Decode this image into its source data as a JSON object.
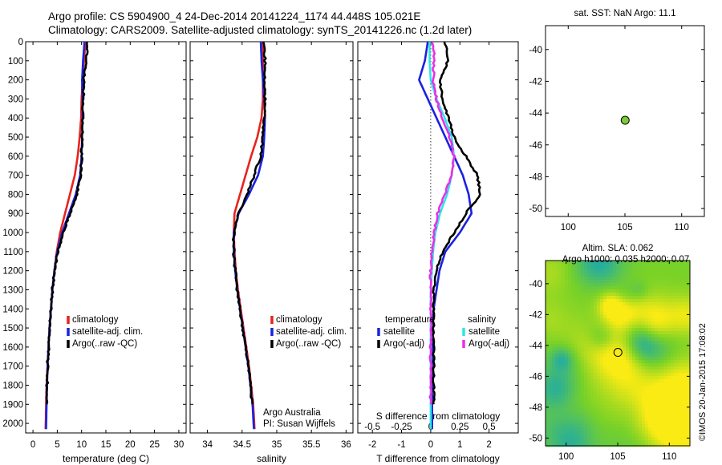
{
  "header": {
    "line1": "Argo profile: CS 5904900_4 24-Dec-2014 20141224_1174 44.448S 105.021E",
    "line2": "Climatology: CARS2009. Satellite-adjusted climatology: synTS_20141226.nc (1.2d later)"
  },
  "copyright": "©IMOS 20-Jan-2015 17:08:02",
  "colors": {
    "climatology": "#e8231c",
    "satellite": "#1a22e0",
    "argo": "#000000",
    "sat_salinity": "#2ee6e6",
    "argo_salinity": "#e830e8",
    "map_marker": "#7cc93a"
  },
  "chart_data": [
    {
      "type": "line",
      "id": "temperature",
      "xlabel": "temperature (deg C)",
      "xticks": [
        0,
        5,
        10,
        15,
        20,
        25,
        30
      ],
      "xlim": [
        -1.5,
        31.5
      ],
      "yticks": [
        0,
        100,
        200,
        300,
        400,
        500,
        600,
        700,
        800,
        900,
        1000,
        1100,
        1200,
        1300,
        1400,
        1500,
        1600,
        1700,
        1800,
        1900,
        2000
      ],
      "ylim": [
        0,
        2050
      ],
      "legend": [
        "climatology",
        "satellite-adj. clim.",
        "Argo(..raw -QC)"
      ],
      "series": [
        {
          "name": "climatology",
          "color": "#e8231c",
          "x": [
            10.8,
            10.5,
            10.2,
            10.0,
            9.9,
            9.6,
            9.2,
            8.6,
            7.6,
            6.6,
            5.6,
            4.9,
            4.4,
            4.0,
            3.7,
            3.4,
            3.2,
            3.0,
            2.8,
            2.7,
            2.6
          ],
          "y": [
            0,
            100,
            200,
            300,
            400,
            500,
            600,
            700,
            800,
            900,
            1000,
            1100,
            1200,
            1300,
            1400,
            1500,
            1600,
            1700,
            1800,
            1900,
            2030
          ]
        },
        {
          "name": "satellite-adj. clim.",
          "color": "#1a22e0",
          "x": [
            10.6,
            10.3,
            10.1,
            10.2,
            10.2,
            10.1,
            10.0,
            9.7,
            8.8,
            7.4,
            6.0,
            5.0,
            4.4,
            4.0,
            3.7,
            3.4,
            3.2,
            3.0,
            2.9,
            2.8,
            2.7
          ],
          "y": [
            0,
            100,
            200,
            300,
            400,
            500,
            600,
            700,
            800,
            900,
            1000,
            1100,
            1200,
            1300,
            1400,
            1500,
            1600,
            1700,
            1800,
            1900,
            2030
          ]
        },
        {
          "name": "Argo(..raw -QC)",
          "color": "#000000",
          "x": [
            11.3,
            11.0,
            10.5,
            10.3,
            10.2,
            10.1,
            10.0,
            9.8,
            9.0,
            7.7,
            6.2,
            5.1,
            4.5,
            4.0,
            3.7,
            3.4,
            3.2,
            3.0,
            2.9,
            2.8
          ],
          "y": [
            0,
            100,
            200,
            300,
            400,
            500,
            600,
            700,
            800,
            900,
            1000,
            1100,
            1200,
            1300,
            1400,
            1500,
            1600,
            1700,
            1800,
            1900
          ]
        }
      ]
    },
    {
      "type": "line",
      "id": "salinity",
      "xlabel": "salinity",
      "xticks": [
        34,
        34.5,
        35,
        35.5,
        36
      ],
      "xticklabels": [
        "34",
        "34.5",
        "35",
        "35.5",
        "36"
      ],
      "xlim": [
        33.75,
        36.1
      ],
      "ylim": [
        0,
        2050
      ],
      "legend": [
        "climatology",
        "satellite-adj. clim.",
        "Argo(..raw -QC)"
      ],
      "annotation": [
        "Argo Australia",
        "PI: Susan Wijffels"
      ],
      "series": [
        {
          "name": "climatology",
          "color": "#e8231c",
          "x": [
            34.8,
            34.8,
            34.8,
            34.8,
            34.78,
            34.72,
            34.63,
            34.55,
            34.47,
            34.39,
            34.38,
            34.39,
            34.41,
            34.44,
            34.48,
            34.52,
            34.56,
            34.6,
            34.63,
            34.66,
            34.68
          ],
          "y": [
            0,
            100,
            200,
            300,
            400,
            500,
            600,
            700,
            800,
            900,
            1000,
            1100,
            1200,
            1300,
            1400,
            1500,
            1600,
            1700,
            1800,
            1900,
            2030
          ]
        },
        {
          "name": "satellite-adj. clim.",
          "color": "#1a22e0",
          "x": [
            34.77,
            34.78,
            34.8,
            34.82,
            34.83,
            34.82,
            34.8,
            34.73,
            34.6,
            34.45,
            34.38,
            34.38,
            34.4,
            34.43,
            34.47,
            34.51,
            34.55,
            34.59,
            34.62,
            34.65,
            34.67
          ],
          "y": [
            0,
            100,
            200,
            300,
            400,
            500,
            600,
            700,
            800,
            900,
            1000,
            1100,
            1200,
            1300,
            1400,
            1500,
            1600,
            1700,
            1800,
            1900,
            2030
          ]
        },
        {
          "name": "Argo(..raw -QC)",
          "color": "#000000",
          "x": [
            34.82,
            34.83,
            34.82,
            34.83,
            34.82,
            34.8,
            34.77,
            34.67,
            34.58,
            34.44,
            34.38,
            34.38,
            34.4,
            34.43,
            34.47,
            34.51,
            34.55,
            34.59,
            34.62,
            34.65
          ],
          "y": [
            0,
            100,
            200,
            300,
            400,
            500,
            600,
            700,
            800,
            900,
            1000,
            1100,
            1200,
            1300,
            1400,
            1500,
            1600,
            1700,
            1800,
            1900
          ]
        }
      ]
    },
    {
      "type": "line",
      "id": "difference",
      "xlabel": "T difference from climatology",
      "xticks": [
        -2,
        -1,
        0,
        1,
        2
      ],
      "xlim": [
        -2.5,
        3.0
      ],
      "secondary_xlabel": "S difference from climatology",
      "secondary_xticks": [
        -0.5,
        -0.25,
        0,
        0.25,
        0.5
      ],
      "secondary_xticklabels": [
        "-0.5",
        "-0.25",
        "0",
        "0.25",
        "0.5"
      ],
      "secondary_xlim": [
        -0.625,
        0.75
      ],
      "ylim": [
        0,
        2050
      ],
      "legend_titles": [
        "temperature",
        "salinity"
      ],
      "legend": [
        "satellite",
        "Argo(-adj)",
        "satellite",
        "Argo(-adj)"
      ],
      "series": [
        {
          "name": "satellite",
          "quantity": "temperature",
          "color": "#1a22e0",
          "x": [
            -0.1,
            -0.2,
            -0.4,
            -0.1,
            0.2,
            0.5,
            0.8,
            1.1,
            1.3,
            1.4,
            1.0,
            0.5,
            0.3,
            0.2,
            0.1,
            0.05,
            0.05,
            0.05,
            0.05,
            0.05,
            0.05
          ],
          "y": [
            0,
            100,
            200,
            300,
            400,
            500,
            600,
            700,
            800,
            900,
            1000,
            1100,
            1200,
            1300,
            1400,
            1500,
            1600,
            1700,
            1800,
            1900,
            2030
          ]
        },
        {
          "name": "Argo(-adj)",
          "quantity": "temperature",
          "color": "#000000",
          "x": [
            0.5,
            0.6,
            0.3,
            0.4,
            0.6,
            0.8,
            1.2,
            1.6,
            1.7,
            1.2,
            0.8,
            0.4,
            0.2,
            0.1,
            0.1,
            0.1,
            0.1,
            0.1,
            0.1,
            0.1
          ],
          "y": [
            0,
            100,
            200,
            300,
            400,
            500,
            600,
            700,
            800,
            900,
            1000,
            1100,
            1200,
            1300,
            1400,
            1500,
            1600,
            1700,
            1800,
            1900
          ]
        },
        {
          "name": "satellite",
          "quantity": "salinity",
          "color": "#2ee6e6",
          "x": [
            -0.01,
            -0.01,
            0.0,
            0.05,
            0.12,
            0.18,
            0.2,
            0.18,
            0.14,
            0.08,
            0.04,
            0.02,
            0.01,
            0.0,
            0.0,
            0.0,
            0.0,
            0.0,
            0.0,
            0.0,
            0.0
          ],
          "y": [
            0,
            100,
            200,
            300,
            400,
            500,
            600,
            700,
            800,
            900,
            1000,
            1100,
            1200,
            1300,
            1400,
            1500,
            1600,
            1700,
            1800,
            1900,
            2030
          ]
        },
        {
          "name": "Argo(-adj)",
          "quantity": "salinity",
          "color": "#e830e8",
          "x": [
            0.02,
            0.03,
            0.02,
            0.05,
            0.1,
            0.16,
            0.2,
            0.18,
            0.12,
            0.06,
            0.03,
            0.01,
            0.0,
            0.0,
            0.0,
            0.0,
            0.0,
            0.0,
            0.0,
            0.0
          ],
          "y": [
            0,
            100,
            200,
            300,
            400,
            500,
            600,
            700,
            800,
            900,
            1000,
            1100,
            1200,
            1300,
            1400,
            1500,
            1600,
            1700,
            1800,
            1900
          ]
        }
      ]
    },
    {
      "type": "scatter",
      "id": "sst_map",
      "title": "sat. SST: NaN Argo: 11.1",
      "xticks": [
        100,
        105,
        110
      ],
      "xlim": [
        98,
        112
      ],
      "yticks": [
        -40,
        -42,
        -44,
        -46,
        -48,
        -50
      ],
      "ylim": [
        -50.5,
        -38.5
      ],
      "points": [
        {
          "x": 105.02,
          "y": -44.45
        }
      ]
    },
    {
      "type": "heatmap",
      "id": "sla_map",
      "title": "Altim. SLA: 0.062",
      "subtitle": "Argo h1000: 0.035 h2000: 0.07",
      "xticks": [
        100,
        105,
        110
      ],
      "xlim": [
        98,
        112
      ],
      "yticks": [
        -40,
        -42,
        -44,
        -46,
        -48,
        -50
      ],
      "ylim": [
        -50.5,
        -38.5
      ],
      "points": [
        {
          "x": 105.02,
          "y": -44.45
        }
      ]
    }
  ]
}
